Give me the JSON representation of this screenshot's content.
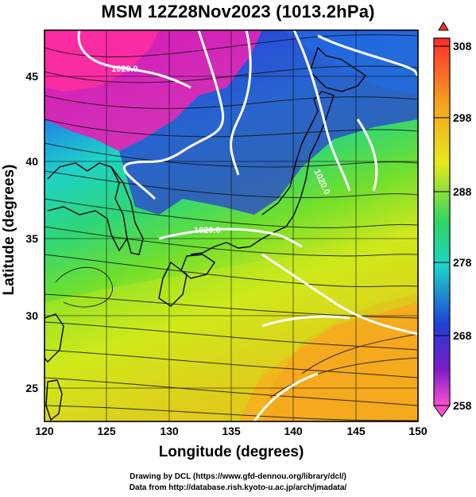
{
  "title": "MSM 12Z28Nov2023 (1013.2hPa)",
  "axes": {
    "xlabel": "Longitude (degrees)",
    "ylabel": "Latitude  (degrees)",
    "xticks": [
      "120",
      "125",
      "130",
      "135",
      "140",
      "145",
      "150"
    ],
    "yticks": [
      "45",
      "40",
      "35",
      "30",
      "25"
    ]
  },
  "colorbar": {
    "ticks": [
      "308",
      "298",
      "288",
      "278",
      "268",
      "258"
    ],
    "colors": [
      "#e8112f",
      "#f26b21",
      "#f5a51e",
      "#f2d41d",
      "#cfe91b",
      "#6fe12c",
      "#27d67a",
      "#1ed4c8",
      "#20a9e6",
      "#1f5ee0",
      "#2a22c4",
      "#6a1cc7",
      "#b61ec9",
      "#ef2aa9",
      "#ff5bd0"
    ]
  },
  "isobars": {
    "labels": [
      "1020.0",
      "1020.0",
      "1020.0"
    ]
  },
  "credits": {
    "line1": "Drawing by DCL (https://www.gfd-dennou.org/library/dcl/)",
    "line2": "Data from http://database.rish.kyoto-u.ac.jp/arch/jmadata/"
  }
}
